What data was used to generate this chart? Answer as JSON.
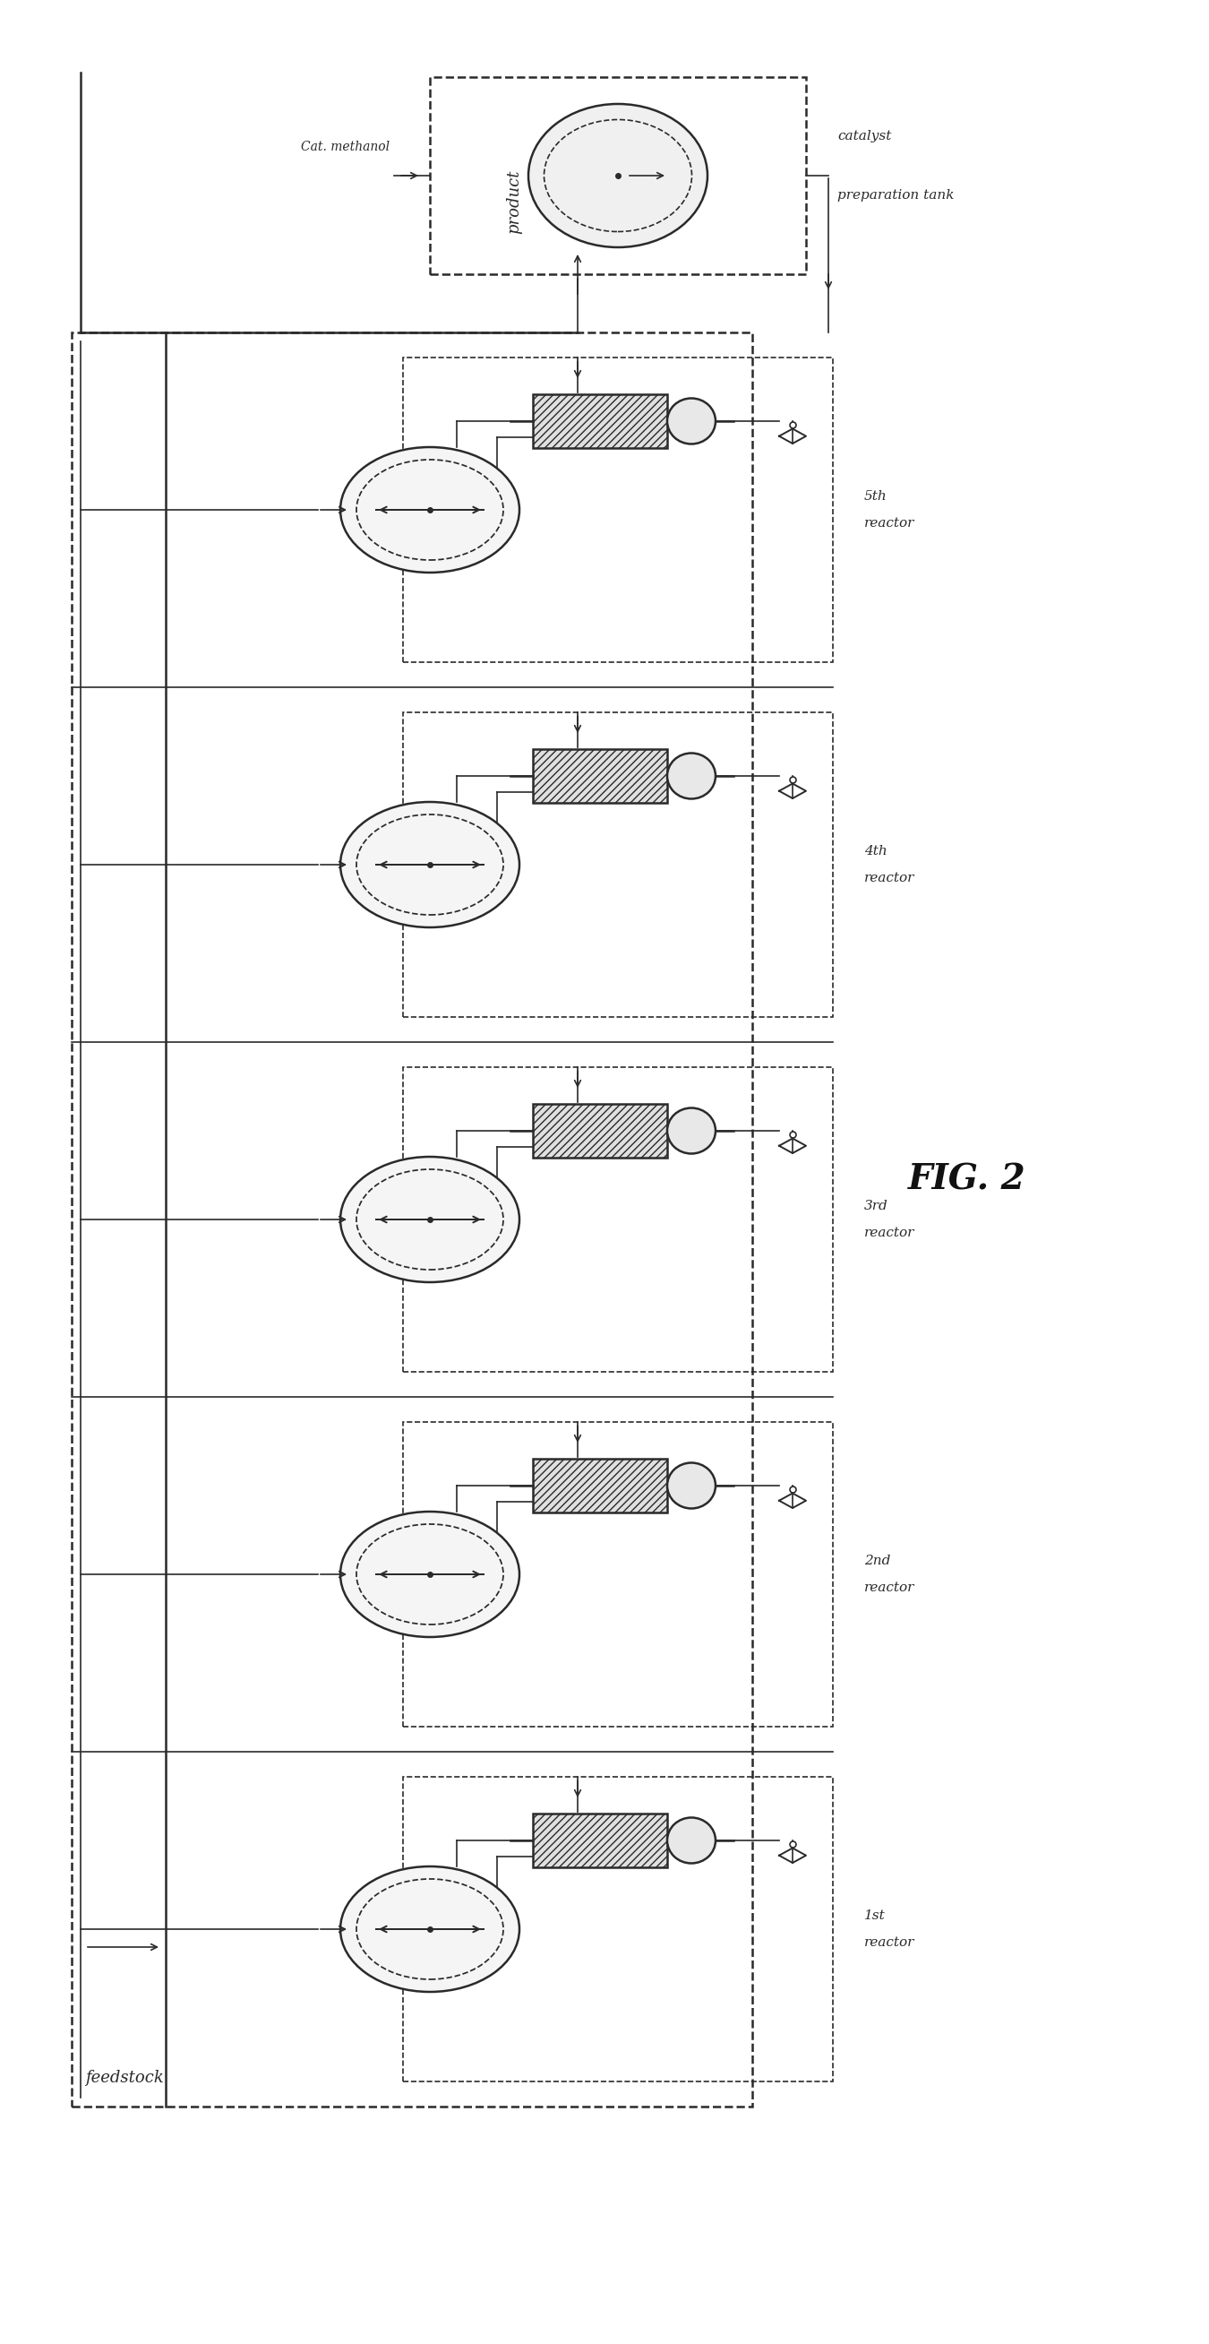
{
  "fig_label": "FIG. 2",
  "bg_color": "#ffffff",
  "line_color": "#2a2a2a",
  "num_reactors": 5,
  "reactor_label": "reactor",
  "reactor_numbers": [
    "1st",
    "2nd",
    "3rd",
    "4th",
    "5th"
  ],
  "feedstock_label": "feedstock",
  "product_label": "product",
  "catalyst_label_line1": "catalyst",
  "catalyst_label_line2": "preparation tank",
  "methanol_label": "Cat. methanol"
}
